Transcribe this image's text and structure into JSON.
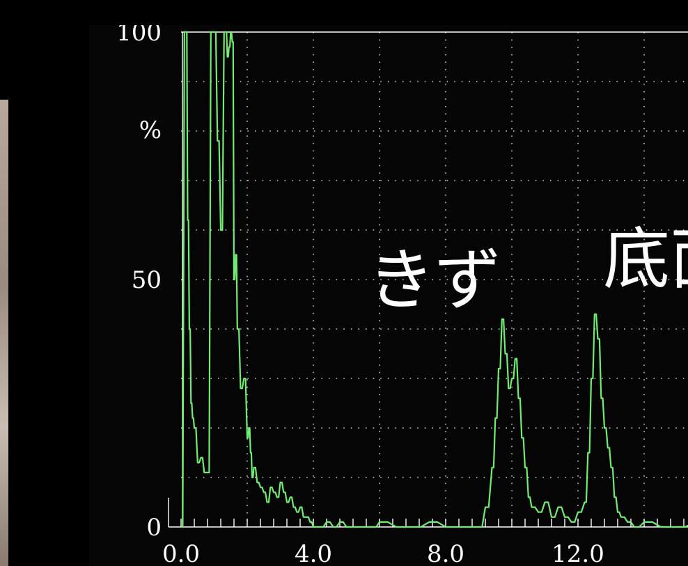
{
  "colors": {
    "trace": "#6fee6f",
    "grid_dots": "#cfcfcf",
    "frame": "#ffffff",
    "background": "#000000"
  },
  "annotations": {
    "flaw_label": "きず",
    "bottom_label_visible": "底面"
  },
  "chart_data": {
    "type": "line",
    "title": "",
    "xlabel": "",
    "ylabel": "%",
    "xlim": [
      0,
      15.5
    ],
    "ylim": [
      0,
      100
    ],
    "x_tick_labels": [
      "0.0",
      "4.0",
      "8.0",
      "12.0"
    ],
    "y_tick_labels": [
      "0",
      "50",
      "100"
    ],
    "y_unit_label": "%",
    "grid": "dotted",
    "series": [
      {
        "x": [
          0.0,
          0.1,
          0.15,
          0.2,
          0.25,
          0.3,
          0.35,
          0.4,
          0.5,
          0.6,
          0.7,
          0.8,
          0.9,
          1.0,
          1.1,
          1.2,
          1.3,
          1.35,
          1.4,
          1.45,
          1.5,
          1.55,
          1.6,
          1.65,
          1.7,
          1.8,
          1.9,
          2.0,
          2.05,
          2.1,
          2.15,
          2.2,
          2.3,
          2.4,
          2.5,
          2.6,
          2.7,
          2.8,
          2.9,
          3.0,
          3.1,
          3.2,
          3.3,
          3.4,
          3.5,
          3.6,
          3.7,
          3.8,
          3.9,
          4.0,
          4.2,
          4.4,
          4.6,
          4.8,
          5.0,
          5.2,
          5.4,
          5.6,
          5.8,
          6.0,
          6.5,
          7.0,
          7.5,
          8.0,
          8.5,
          9.0,
          9.2,
          9.4,
          9.5,
          9.6,
          9.7,
          9.8,
          9.9,
          10.0,
          10.1,
          10.2,
          10.3,
          10.4,
          10.5,
          10.6,
          10.8,
          11.0,
          11.2,
          11.4,
          11.6,
          11.8,
          12.0,
          12.2,
          12.3,
          12.4,
          12.5,
          12.6,
          12.7,
          12.8,
          12.9,
          13.0,
          13.1,
          13.2,
          13.3,
          13.5,
          13.7,
          14.0,
          14.5,
          15.0,
          15.5
        ],
        "y": [
          0,
          100,
          100,
          62,
          40,
          25,
          22,
          20,
          13,
          14,
          11,
          11,
          100,
          100,
          78,
          60,
          100,
          100,
          95,
          97,
          100,
          98,
          50,
          55,
          40,
          28,
          30,
          18,
          20,
          15,
          10,
          12,
          9,
          8,
          7,
          5,
          8,
          7,
          6,
          9,
          7,
          5,
          6,
          4,
          3,
          4,
          2,
          2,
          1,
          0,
          0,
          1,
          0,
          1,
          0,
          0,
          0,
          0,
          0,
          1,
          0,
          0,
          1,
          0,
          0,
          0,
          4,
          12,
          22,
          32,
          42,
          35,
          28,
          30,
          34,
          26,
          18,
          12,
          6,
          4,
          3,
          5,
          2,
          4,
          2,
          1,
          3,
          5,
          15,
          30,
          43,
          38,
          26,
          20,
          16,
          12,
          6,
          3,
          2,
          1,
          0,
          1,
          0,
          0,
          1
        ]
      }
    ]
  }
}
